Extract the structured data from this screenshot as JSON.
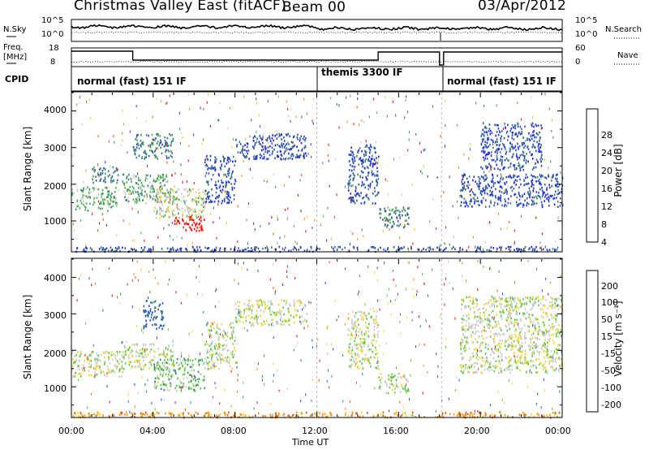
{
  "header": {
    "station": "Christmas Valley East (fitACF)",
    "beam": "Beam 00",
    "date": "03/Apr/2012"
  },
  "top_panels": {
    "nsky_label": "N.Sky",
    "nsearch_label": "N.Search",
    "noise_ticks": [
      "10^5",
      "10^0"
    ],
    "freq_label": "Freq.",
    "freq_unit": "[MHz]",
    "freq_ticks": [
      "18",
      "8"
    ],
    "nave_label": "Nave",
    "nave_ticks": [
      "60",
      "0"
    ],
    "cpid_label": "CPID",
    "modes": [
      {
        "name": "normal (fast) 151 IF",
        "start_hour": 0
      },
      {
        "name": "themis 3300 IF",
        "start_hour": 12
      },
      {
        "name": "normal (fast) 151 IF",
        "start_hour": 18.1
      }
    ]
  },
  "chart_data": [
    {
      "type": "heatmap",
      "title": "",
      "ylabel": "Slant Range [km]",
      "xlabel": "",
      "xlim": [
        0,
        24
      ],
      "ylim": [
        180,
        4500
      ],
      "yticks": [
        "4000",
        "3000",
        "2000",
        "1000"
      ],
      "colorbar": {
        "label": "Power [dB]",
        "ticks": [
          "28",
          "24",
          "20",
          "16",
          "12",
          "8",
          "4"
        ],
        "colors": [
          "#1e1eff",
          "#2a4fb2",
          "#3d7a7a",
          "#44b048",
          "#c8c8c8",
          "#f0c018",
          "#f08c18",
          "#ee4000",
          "#ff0000"
        ]
      },
      "regions": [
        {
          "t0": 0.0,
          "t1": 2.2,
          "r0": 1300,
          "r1": 1950,
          "level": 3
        },
        {
          "t0": 1.0,
          "t1": 2.3,
          "r0": 2050,
          "r1": 2500,
          "level": 2
        },
        {
          "t0": 2.5,
          "t1": 4.8,
          "r0": 1500,
          "r1": 2300,
          "level": 3
        },
        {
          "t0": 3.0,
          "t1": 5.0,
          "r0": 2700,
          "r1": 3400,
          "level": 2
        },
        {
          "t0": 4.0,
          "t1": 6.5,
          "r0": 1100,
          "r1": 1900,
          "level": 4
        },
        {
          "t0": 5.0,
          "t1": 6.5,
          "r0": 750,
          "r1": 1150,
          "level": 8
        },
        {
          "t0": 6.5,
          "t1": 8.0,
          "r0": 1500,
          "r1": 2800,
          "level": 1
        },
        {
          "t0": 8.0,
          "t1": 11.5,
          "r0": 2700,
          "r1": 3400,
          "level": 1
        },
        {
          "t0": 13.5,
          "t1": 15.0,
          "r0": 1500,
          "r1": 3100,
          "level": 1
        },
        {
          "t0": 15.0,
          "t1": 16.5,
          "r0": 850,
          "r1": 1400,
          "level": 2
        },
        {
          "t0": 19.0,
          "t1": 24.0,
          "r0": 1400,
          "r1": 2300,
          "level": 1
        },
        {
          "t0": 20.0,
          "t1": 23.0,
          "r0": 2400,
          "r1": 3700,
          "level": 1
        },
        {
          "t0": 0.0,
          "t1": 24.0,
          "r0": 180,
          "r1": 320,
          "level": 1
        }
      ]
    },
    {
      "type": "heatmap",
      "title": "",
      "ylabel": "Slant Range [km]",
      "xlabel": "Time UT",
      "xlim": [
        0,
        24
      ],
      "ylim": [
        180,
        4500
      ],
      "yticks": [
        "4000",
        "3000",
        "2000",
        "1000"
      ],
      "xticks": [
        "00:00",
        "04:00",
        "08:00",
        "12:00",
        "16:00",
        "20:00",
        "00:00"
      ],
      "colorbar": {
        "label": "Velocity [m s⁻¹]",
        "ticks": [
          "200",
          "100",
          "50",
          "15",
          "-15",
          "-50",
          "-100",
          "-200"
        ],
        "colors": [
          "#2a3cff",
          "#2d5aa8",
          "#2e8a70",
          "#5cc840",
          "#c8c8c8",
          "#f0d818",
          "#f09018",
          "#ee5000",
          "#ff0000"
        ]
      },
      "regions": [
        {
          "t0": 0.0,
          "t1": 2.5,
          "r0": 1300,
          "r1": 2000,
          "level": 4
        },
        {
          "t0": 2.5,
          "t1": 5.0,
          "r0": 1500,
          "r1": 2200,
          "level": 4
        },
        {
          "t0": 4.0,
          "t1": 6.5,
          "r0": 900,
          "r1": 1800,
          "level": 3
        },
        {
          "t0": 3.5,
          "t1": 4.5,
          "r0": 2600,
          "r1": 3400,
          "level": 1
        },
        {
          "t0": 6.5,
          "t1": 8.0,
          "r0": 1500,
          "r1": 2800,
          "level": 4
        },
        {
          "t0": 8.0,
          "t1": 11.5,
          "r0": 2700,
          "r1": 3400,
          "level": 4
        },
        {
          "t0": 13.5,
          "t1": 15.0,
          "r0": 1500,
          "r1": 3100,
          "level": 4
        },
        {
          "t0": 15.0,
          "t1": 16.5,
          "r0": 850,
          "r1": 1400,
          "level": 4
        },
        {
          "t0": 19.0,
          "t1": 24.0,
          "r0": 1400,
          "r1": 3500,
          "level": 4
        },
        {
          "t0": 0.0,
          "t1": 24.0,
          "r0": 180,
          "r1": 330,
          "level": 6
        }
      ]
    }
  ]
}
